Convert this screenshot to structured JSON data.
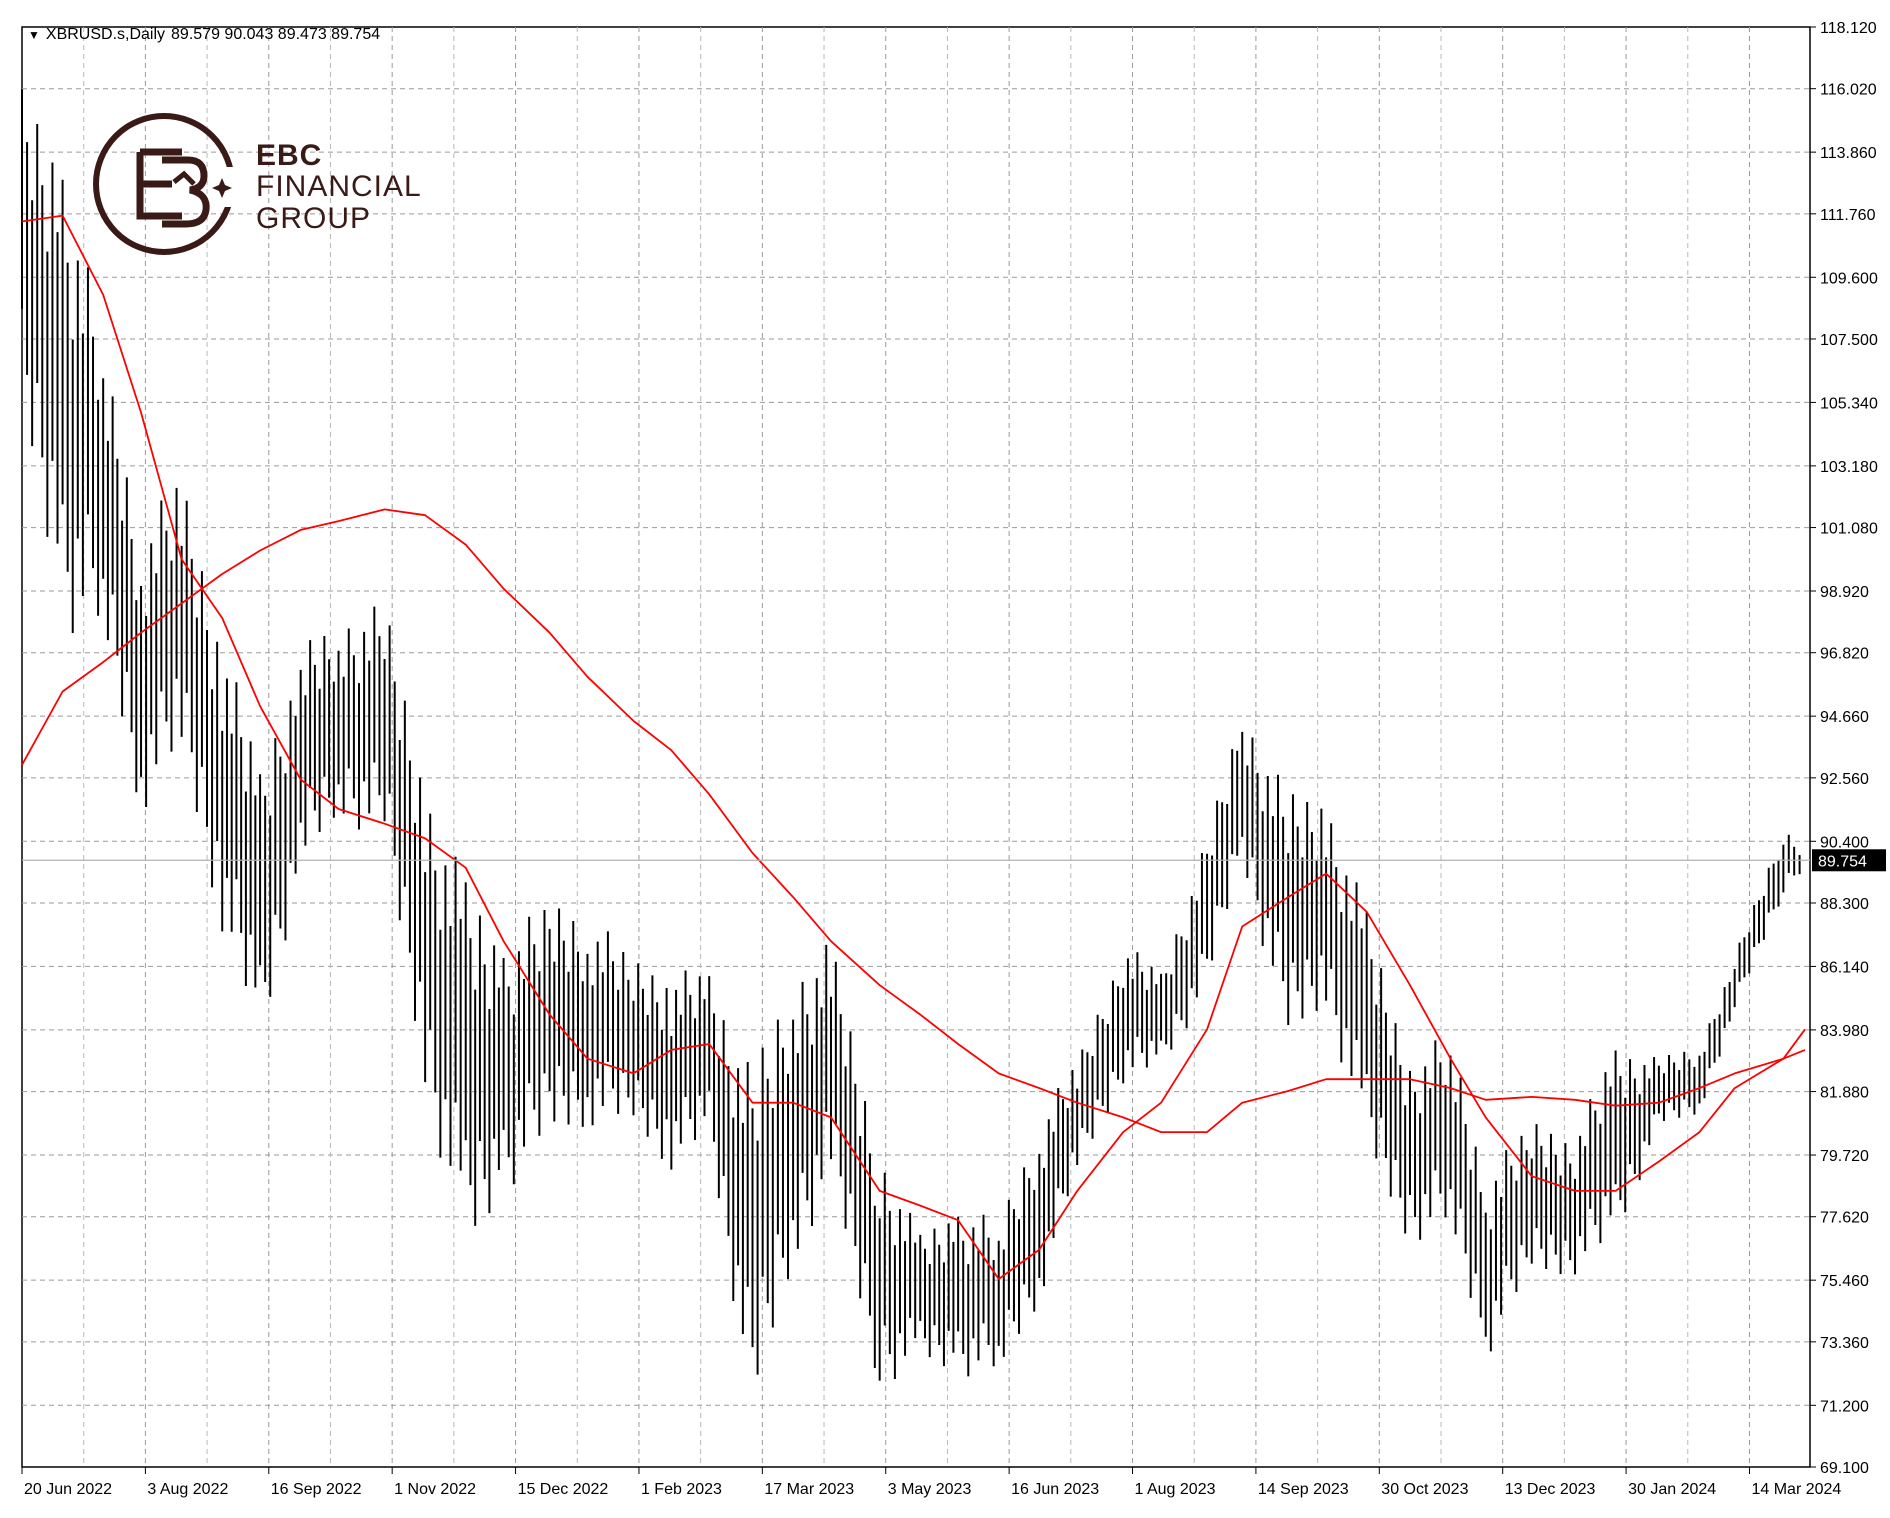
{
  "header": {
    "menu_icon": "triangle-down-icon",
    "symbol": "XBRUSD.s,Daily",
    "ohlc": "89.579 90.043 89.473 89.754"
  },
  "logo": {
    "icon": "ebc-monogram-logo-icon",
    "line1": "EBC",
    "line2": "FINANCIAL",
    "line3": "GROUP",
    "color": "#3a1a16"
  },
  "chart_data": {
    "type": "ohlc-bar",
    "symbol": "XBRUSD.s",
    "timeframe": "Daily",
    "x_tick_labels": [
      "20 Jun 2022",
      "3 Aug 2022",
      "16 Sep 2022",
      "1 Nov 2022",
      "15 Dec 2022",
      "1 Feb 2023",
      "17 Mar 2023",
      "3 May 2023",
      "16 Jun 2023",
      "1 Aug 2023",
      "14 Sep 2023",
      "30 Oct 2023",
      "13 Dec 2023",
      "30 Jan 2024",
      "14 Mar 2024"
    ],
    "y_tick_labels": [
      "118.120",
      "116.020",
      "113.860",
      "111.760",
      "109.600",
      "107.500",
      "105.340",
      "103.180",
      "101.080",
      "98.920",
      "96.820",
      "94.660",
      "92.560",
      "90.400",
      "88.300",
      "86.140",
      "83.980",
      "81.880",
      "79.720",
      "77.620",
      "75.460",
      "73.360",
      "71.200",
      "69.100"
    ],
    "y_range": [
      69.1,
      118.12
    ],
    "current_price_label": "89.754",
    "current_price": 89.754,
    "grid": true,
    "bar_color": "#000000",
    "ma_color": "#ff0000",
    "price_series": [
      {
        "date": "2022-06-20",
        "high": 116.0,
        "low": 104.5
      },
      {
        "date": "2022-07-05",
        "high": 114.0,
        "low": 97.0
      },
      {
        "date": "2022-07-20",
        "high": 107.5,
        "low": 97.0
      },
      {
        "date": "2022-08-03",
        "high": 101.0,
        "low": 91.0
      },
      {
        "date": "2022-08-18",
        "high": 103.0,
        "low": 93.0
      },
      {
        "date": "2022-09-02",
        "high": 97.5,
        "low": 87.0
      },
      {
        "date": "2022-09-16",
        "high": 93.0,
        "low": 83.0
      },
      {
        "date": "2022-10-01",
        "high": 97.0,
        "low": 89.0
      },
      {
        "date": "2022-10-15",
        "high": 98.0,
        "low": 91.0
      },
      {
        "date": "2022-11-01",
        "high": 98.5,
        "low": 90.0
      },
      {
        "date": "2022-11-16",
        "high": 92.5,
        "low": 81.5
      },
      {
        "date": "2022-12-01",
        "high": 89.0,
        "low": 75.5
      },
      {
        "date": "2022-12-15",
        "high": 87.0,
        "low": 78.0
      },
      {
        "date": "2023-01-01",
        "high": 88.5,
        "low": 80.0
      },
      {
        "date": "2023-01-15",
        "high": 88.0,
        "low": 80.5
      },
      {
        "date": "2023-02-01",
        "high": 86.5,
        "low": 80.5
      },
      {
        "date": "2023-02-15",
        "high": 86.0,
        "low": 79.0
      },
      {
        "date": "2023-03-01",
        "high": 86.0,
        "low": 80.0
      },
      {
        "date": "2023-03-17",
        "high": 82.5,
        "low": 70.0
      },
      {
        "date": "2023-04-01",
        "high": 86.0,
        "low": 75.5
      },
      {
        "date": "2023-04-15",
        "high": 87.0,
        "low": 78.5
      },
      {
        "date": "2023-05-03",
        "high": 80.0,
        "low": 71.5
      },
      {
        "date": "2023-05-18",
        "high": 77.0,
        "low": 72.5
      },
      {
        "date": "2023-06-01",
        "high": 78.0,
        "low": 72.0
      },
      {
        "date": "2023-06-16",
        "high": 77.5,
        "low": 72.0
      },
      {
        "date": "2023-07-01",
        "high": 81.0,
        "low": 74.5
      },
      {
        "date": "2023-07-15",
        "high": 83.0,
        "low": 79.0
      },
      {
        "date": "2023-08-01",
        "high": 87.0,
        "low": 82.0
      },
      {
        "date": "2023-08-15",
        "high": 86.0,
        "low": 82.5
      },
      {
        "date": "2023-09-01",
        "high": 90.5,
        "low": 85.0
      },
      {
        "date": "2023-09-14",
        "high": 95.0,
        "low": 89.5
      },
      {
        "date": "2023-10-01",
        "high": 92.0,
        "low": 83.0
      },
      {
        "date": "2023-10-15",
        "high": 92.0,
        "low": 84.5
      },
      {
        "date": "2023-10-30",
        "high": 88.0,
        "low": 79.5
      },
      {
        "date": "2023-11-15",
        "high": 83.0,
        "low": 76.5
      },
      {
        "date": "2023-11-30",
        "high": 84.0,
        "low": 77.0
      },
      {
        "date": "2023-12-13",
        "high": 79.0,
        "low": 72.5
      },
      {
        "date": "2023-12-30",
        "high": 81.0,
        "low": 75.5
      },
      {
        "date": "2024-01-15",
        "high": 80.5,
        "low": 75.5
      },
      {
        "date": "2024-01-30",
        "high": 83.5,
        "low": 76.5
      },
      {
        "date": "2024-02-15",
        "high": 83.0,
        "low": 80.5
      },
      {
        "date": "2024-03-01",
        "high": 83.5,
        "low": 81.0
      },
      {
        "date": "2024-03-14",
        "high": 86.5,
        "low": 84.5
      },
      {
        "date": "2024-04-01",
        "high": 91.0,
        "low": 88.5
      },
      {
        "date": "2024-04-09",
        "high": 90.0,
        "low": 89.5
      }
    ],
    "ma_series": [
      {
        "name": "",
        "points": [
          {
            "date": "2022-06-20",
            "value": 111.5
          },
          {
            "date": "2022-07-05",
            "value": 111.7
          },
          {
            "date": "2022-07-20",
            "value": 109.0
          },
          {
            "date": "2022-08-03",
            "value": 105.0
          },
          {
            "date": "2022-08-18",
            "value": 100.0
          },
          {
            "date": "2022-09-02",
            "value": 98.0
          },
          {
            "date": "2022-09-16",
            "value": 95.0
          },
          {
            "date": "2022-10-01",
            "value": 92.5
          },
          {
            "date": "2022-10-15",
            "value": 91.5
          },
          {
            "date": "2022-11-01",
            "value": 91.0
          },
          {
            "date": "2022-11-16",
            "value": 90.5
          },
          {
            "date": "2022-12-01",
            "value": 89.5
          },
          {
            "date": "2022-12-15",
            "value": 87.0
          },
          {
            "date": "2023-01-01",
            "value": 84.5
          },
          {
            "date": "2023-01-15",
            "value": 83.0
          },
          {
            "date": "2023-02-01",
            "value": 82.5
          },
          {
            "date": "2023-02-15",
            "value": 83.3
          },
          {
            "date": "2023-03-01",
            "value": 83.5
          },
          {
            "date": "2023-03-17",
            "value": 81.5
          },
          {
            "date": "2023-04-01",
            "value": 81.5
          },
          {
            "date": "2023-04-15",
            "value": 81.0
          },
          {
            "date": "2023-05-03",
            "value": 78.5
          },
          {
            "date": "2023-05-18",
            "value": 78.0
          },
          {
            "date": "2023-06-01",
            "value": 77.5
          },
          {
            "date": "2023-06-16",
            "value": 75.5
          },
          {
            "date": "2023-07-01",
            "value": 76.5
          },
          {
            "date": "2023-07-15",
            "value": 78.5
          },
          {
            "date": "2023-08-01",
            "value": 80.5
          },
          {
            "date": "2023-08-15",
            "value": 81.5
          },
          {
            "date": "2023-09-01",
            "value": 84.0
          },
          {
            "date": "2023-09-14",
            "value": 87.5
          },
          {
            "date": "2023-10-01",
            "value": 88.5
          },
          {
            "date": "2023-10-15",
            "value": 89.3
          },
          {
            "date": "2023-10-30",
            "value": 88.0
          },
          {
            "date": "2023-11-15",
            "value": 85.5
          },
          {
            "date": "2023-11-30",
            "value": 83.0
          },
          {
            "date": "2023-12-13",
            "value": 81.0
          },
          {
            "date": "2023-12-30",
            "value": 79.0
          },
          {
            "date": "2024-01-15",
            "value": 78.5
          },
          {
            "date": "2024-01-30",
            "value": 78.5
          },
          {
            "date": "2024-02-15",
            "value": 79.5
          },
          {
            "date": "2024-03-01",
            "value": 80.5
          },
          {
            "date": "2024-03-14",
            "value": 82.0
          },
          {
            "date": "2024-04-01",
            "value": 83.0
          },
          {
            "date": "2024-04-09",
            "value": 84.0
          }
        ]
      },
      {
        "name": "",
        "points": [
          {
            "date": "2022-06-20",
            "value": 93.0
          },
          {
            "date": "2022-07-05",
            "value": 95.5
          },
          {
            "date": "2022-07-20",
            "value": 96.5
          },
          {
            "date": "2022-08-03",
            "value": 97.5
          },
          {
            "date": "2022-08-18",
            "value": 98.5
          },
          {
            "date": "2022-09-02",
            "value": 99.5
          },
          {
            "date": "2022-09-16",
            "value": 100.3
          },
          {
            "date": "2022-10-01",
            "value": 101.0
          },
          {
            "date": "2022-10-15",
            "value": 101.3
          },
          {
            "date": "2022-11-01",
            "value": 101.7
          },
          {
            "date": "2022-11-16",
            "value": 101.5
          },
          {
            "date": "2022-12-01",
            "value": 100.5
          },
          {
            "date": "2022-12-15",
            "value": 99.0
          },
          {
            "date": "2023-01-01",
            "value": 97.5
          },
          {
            "date": "2023-01-15",
            "value": 96.0
          },
          {
            "date": "2023-02-01",
            "value": 94.5
          },
          {
            "date": "2023-02-15",
            "value": 93.5
          },
          {
            "date": "2023-03-01",
            "value": 92.0
          },
          {
            "date": "2023-03-17",
            "value": 90.0
          },
          {
            "date": "2023-04-01",
            "value": 88.5
          },
          {
            "date": "2023-04-15",
            "value": 87.0
          },
          {
            "date": "2023-05-03",
            "value": 85.5
          },
          {
            "date": "2023-05-18",
            "value": 84.5
          },
          {
            "date": "2023-06-01",
            "value": 83.5
          },
          {
            "date": "2023-06-16",
            "value": 82.5
          },
          {
            "date": "2023-07-01",
            "value": 82.0
          },
          {
            "date": "2023-07-15",
            "value": 81.5
          },
          {
            "date": "2023-08-01",
            "value": 81.0
          },
          {
            "date": "2023-08-15",
            "value": 80.5
          },
          {
            "date": "2023-09-01",
            "value": 80.5
          },
          {
            "date": "2023-09-14",
            "value": 81.5
          },
          {
            "date": "2023-10-01",
            "value": 81.9
          },
          {
            "date": "2023-10-15",
            "value": 82.3
          },
          {
            "date": "2023-10-30",
            "value": 82.3
          },
          {
            "date": "2023-11-15",
            "value": 82.3
          },
          {
            "date": "2023-11-30",
            "value": 82.0
          },
          {
            "date": "2023-12-13",
            "value": 81.6
          },
          {
            "date": "2023-12-30",
            "value": 81.7
          },
          {
            "date": "2024-01-15",
            "value": 81.6
          },
          {
            "date": "2024-01-30",
            "value": 81.4
          },
          {
            "date": "2024-02-15",
            "value": 81.5
          },
          {
            "date": "2024-03-01",
            "value": 82.0
          },
          {
            "date": "2024-03-14",
            "value": 82.5
          },
          {
            "date": "2024-04-01",
            "value": 83.0
          },
          {
            "date": "2024-04-09",
            "value": 83.3
          }
        ]
      }
    ]
  }
}
